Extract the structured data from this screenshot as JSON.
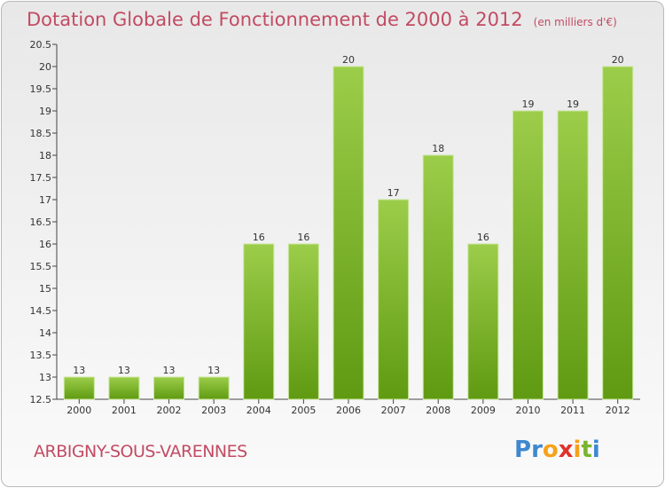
{
  "header": {
    "title": "Dotation Globale de Fonctionnement de 2000 à 2012",
    "subtitle": "(en milliers d'€)"
  },
  "footer": {
    "commune": "ARBIGNY-SOUS-VARENNES",
    "logo_letters": [
      "P",
      "r",
      "o",
      "x",
      "i",
      "t",
      "i"
    ]
  },
  "colors": {
    "bar_top": "#9ccd4a",
    "bar_bottom": "#5f9a12",
    "title": "#c24b63",
    "logo": [
      "#3f88cf",
      "#3f88cf",
      "#f5a21b",
      "#e0312b",
      "#f5a21b",
      "#79b52f",
      "#3f88cf"
    ]
  },
  "chart_data": {
    "type": "bar",
    "categories": [
      "2000",
      "2001",
      "2002",
      "2003",
      "2004",
      "2005",
      "2006",
      "2007",
      "2008",
      "2009",
      "2010",
      "2011",
      "2012"
    ],
    "values": [
      13,
      13,
      13,
      13,
      16,
      16,
      20,
      17,
      18,
      16,
      19,
      19,
      20
    ],
    "data_labels": [
      "13",
      "13",
      "13",
      "13",
      "16",
      "16",
      "20",
      "17",
      "18",
      "16",
      "19",
      "19",
      "20"
    ],
    "ylim": [
      12.5,
      20.5
    ],
    "yticks": [
      "12.5",
      "13",
      "13.5",
      "14",
      "14.5",
      "15",
      "15.5",
      "16",
      "16.5",
      "17",
      "17.5",
      "18",
      "18.5",
      "19",
      "19.5",
      "20",
      "20.5"
    ],
    "grid": false,
    "legend": "none"
  }
}
